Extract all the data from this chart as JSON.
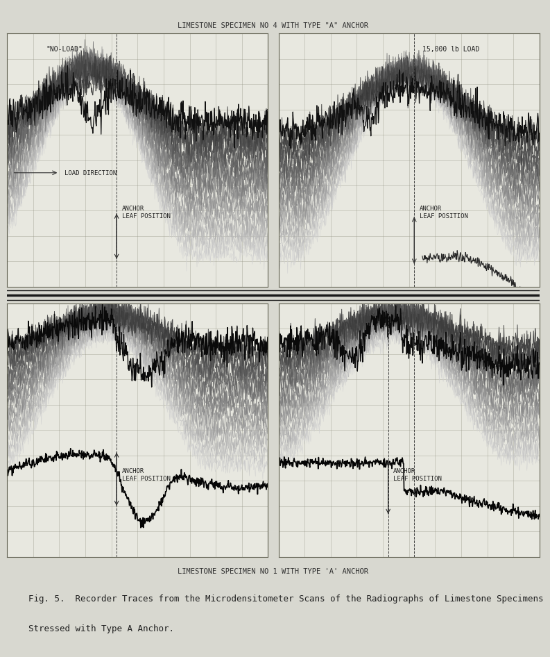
{
  "title_top": "LIMESTONE SPECIMEN NO 4 WITH TYPE \"A\" ANCHOR",
  "title_bottom": "LIMESTONE SPECIMEN NO 1 WITH TYPE 'A' ANCHOR",
  "caption_line1": "Fig. 5.  Recorder Traces from the Microdensitometer Scans of the Radiographs of Limestone Specimens",
  "caption_line2": "Stressed with Type A Anchor.",
  "label_no_load": "\"NO-LOAD\"",
  "label_15000": "15,000 lb LOAD",
  "label_load_direction": "LOAD DIRECTION",
  "label_anchor_leaf1": "ANCHOR\nLEAF POSITION",
  "label_anchor_leaf2": "ANCHOR\nLEAF POSITION",
  "label_anchor_leaf3": "ANCHOR\nLEAF POSITION",
  "label_anchor_leaf4": "ANCHOR\nLEAF POSITION",
  "bg_color": "#e8e8e0",
  "grid_color": "#b0b0a0",
  "trace_color_light": "#a0a0a0",
  "trace_color_dark": "#202020",
  "fig_bg": "#d8d8d0"
}
